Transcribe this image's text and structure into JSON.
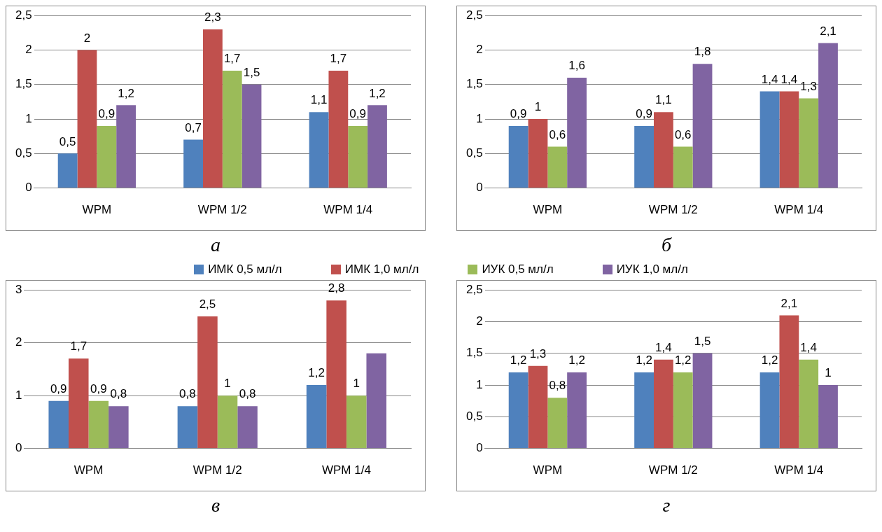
{
  "chart_data": [
    {
      "type": "bar",
      "title": "а",
      "categories": [
        "WPM",
        "WPM 1/2",
        "WPM 1/4"
      ],
      "ylim": [
        0,
        2.5
      ],
      "yticks": [
        {
          "value": 0,
          "label": "0"
        },
        {
          "value": 0.5,
          "label": "0,5"
        },
        {
          "value": 1,
          "label": "1"
        },
        {
          "value": 1.5,
          "label": "1,5"
        },
        {
          "value": 2,
          "label": "2"
        },
        {
          "value": 2.5,
          "label": "2,5"
        }
      ],
      "grid": "y",
      "series": [
        {
          "color": "#4f81bd",
          "values": [
            0.5,
            0.7,
            1.1
          ],
          "value_labels": [
            "0,5",
            "0,7",
            "1,1"
          ]
        },
        {
          "color": "#c0504d",
          "values": [
            2,
            2.3,
            1.7
          ],
          "value_labels": [
            "2",
            "2,3",
            "1,7"
          ]
        },
        {
          "color": "#9bbb59",
          "values": [
            0.9,
            1.7,
            0.9
          ],
          "value_labels": [
            "0,9",
            "1,7",
            "0,9"
          ]
        },
        {
          "color": "#8064a2",
          "values": [
            1.2,
            1.5,
            1.2
          ],
          "value_labels": [
            "1,2",
            "1,5",
            "1,2"
          ]
        }
      ]
    },
    {
      "type": "bar",
      "title": "б",
      "categories": [
        "WPM",
        "WPM 1/2",
        "WPM 1/4"
      ],
      "ylim": [
        0,
        2.5
      ],
      "yticks": [
        {
          "value": 0,
          "label": "0"
        },
        {
          "value": 0.5,
          "label": "0,5"
        },
        {
          "value": 1,
          "label": "1"
        },
        {
          "value": 1.5,
          "label": "1,5"
        },
        {
          "value": 2,
          "label": "2"
        },
        {
          "value": 2.5,
          "label": "2,5"
        }
      ],
      "grid": "y",
      "series": [
        {
          "color": "#4f81bd",
          "values": [
            0.9,
            0.9,
            1.4
          ],
          "value_labels": [
            "0,9",
            "0,9",
            "1,4"
          ]
        },
        {
          "color": "#c0504d",
          "values": [
            1,
            1.1,
            1.4
          ],
          "value_labels": [
            "1",
            "1,1",
            "1,4"
          ]
        },
        {
          "color": "#9bbb59",
          "values": [
            0.6,
            0.6,
            1.3
          ],
          "value_labels": [
            "0,6",
            "0,6",
            "1,3"
          ]
        },
        {
          "color": "#8064a2",
          "values": [
            1.6,
            1.8,
            2.1
          ],
          "value_labels": [
            "1,6",
            "1,8",
            "2,1"
          ]
        }
      ]
    },
    {
      "type": "bar",
      "title": "в",
      "categories": [
        "WPM",
        "WPM 1/2",
        "WPM 1/4"
      ],
      "ylim": [
        0,
        3
      ],
      "yticks": [
        0,
        1,
        2,
        3
      ],
      "grid": "y",
      "legend": "top",
      "series": [
        {
          "name": "ИМК 0,5 мл/л",
          "color": "#4f81bd",
          "values": [
            0.9,
            0.8,
            1.2
          ],
          "value_labels": [
            "0,9",
            "0,8",
            "1,2"
          ]
        },
        {
          "name": "ИМК 1,0 мл/л",
          "color": "#c0504d",
          "values": [
            1.7,
            2.5,
            2.8
          ],
          "value_labels": [
            "1,7",
            "2,5",
            "2,8"
          ]
        },
        {
          "name": "ИУК 0,5 мл/л",
          "color": "#9bbb59",
          "values": [
            0.9,
            1,
            1
          ],
          "value_labels": [
            "0,9",
            "1",
            "1"
          ]
        },
        {
          "name": "ИУК 1,0 мл/л",
          "color": "#8064a2",
          "values": [
            0.8,
            0.8,
            1.8
          ],
          "value_labels": [
            "0,8",
            "0,8",
            null
          ]
        }
      ]
    },
    {
      "type": "bar",
      "title": "г",
      "categories": [
        "WPM",
        "WPM 1/2",
        "WPM 1/4"
      ],
      "ylim": [
        0,
        2.5
      ],
      "yticks": [
        {
          "value": 0,
          "label": "0"
        },
        {
          "value": 0.5,
          "label": "0,5"
        },
        {
          "value": 1,
          "label": "1"
        },
        {
          "value": 1.5,
          "label": "1,5"
        },
        {
          "value": 2,
          "label": "2"
        },
        {
          "value": 2.5,
          "label": "2,5"
        }
      ],
      "grid": "y",
      "series": [
        {
          "color": "#4f81bd",
          "values": [
            1.2,
            1.2,
            1.2
          ],
          "value_labels": [
            "1,2",
            "1,2",
            "1,2"
          ]
        },
        {
          "color": "#c0504d",
          "values": [
            1.3,
            1.4,
            2.1
          ],
          "value_labels": [
            "1,3",
            "1,4",
            "2,1"
          ]
        },
        {
          "color": "#9bbb59",
          "values": [
            0.8,
            1.2,
            1.4
          ],
          "value_labels": [
            "0,8",
            "1,2",
            "1,4"
          ]
        },
        {
          "color": "#8064a2",
          "values": [
            1.2,
            1.5,
            1
          ],
          "value_labels": [
            "1,2",
            "1,5",
            "1"
          ]
        }
      ]
    }
  ]
}
